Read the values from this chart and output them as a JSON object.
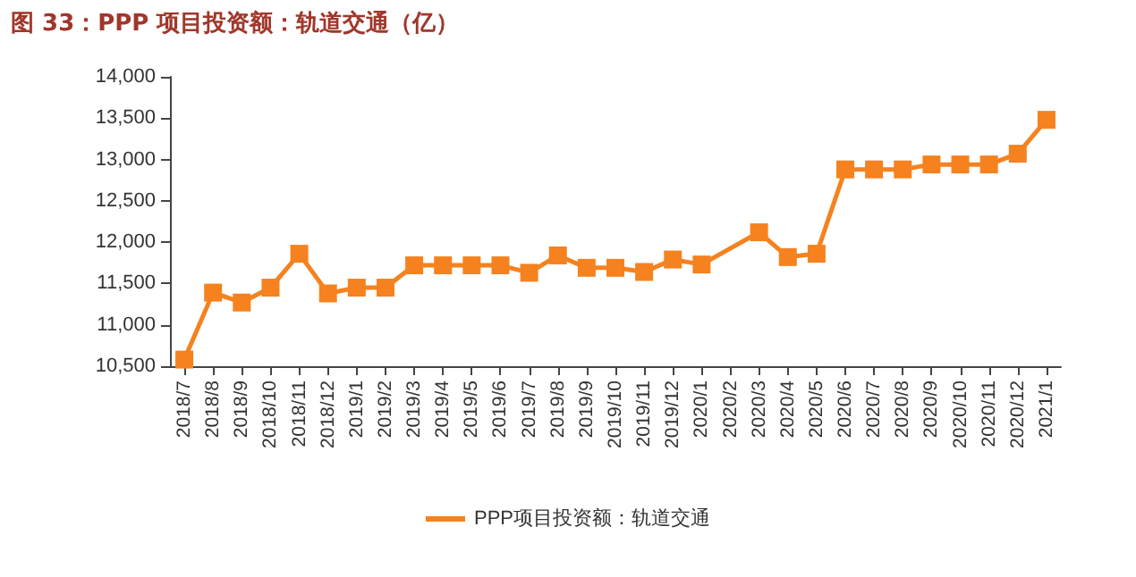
{
  "chart_data": {
    "type": "line",
    "title": "图 33：PPP 项目投资额：轨道交通（亿）",
    "categories": [
      "2018/7",
      "2018/8",
      "2018/9",
      "2018/10",
      "2018/11",
      "2018/12",
      "2019/1",
      "2019/2",
      "2019/3",
      "2019/4",
      "2019/5",
      "2019/6",
      "2019/7",
      "2019/8",
      "2019/9",
      "2019/10",
      "2019/11",
      "2019/12",
      "2020/1",
      "2020/2",
      "2020/3",
      "2020/4",
      "2020/5",
      "2020/6",
      "2020/7",
      "2020/8",
      "2020/9",
      "2020/10",
      "2020/11",
      "2020/12",
      "2021/1"
    ],
    "series": [
      {
        "name": "PPP项目投资额：轨道交通",
        "color": "#f5821f",
        "values": [
          10580,
          11390,
          11270,
          11450,
          11860,
          11380,
          11450,
          11450,
          11720,
          11720,
          11720,
          11720,
          11630,
          11840,
          11690,
          11690,
          11640,
          11790,
          11730,
          null,
          12120,
          11820,
          11860,
          12880,
          12880,
          12880,
          12940,
          12940,
          12940,
          13070,
          13480
        ]
      }
    ],
    "ylim": [
      10500,
      14000
    ],
    "yticks": [
      {
        "value": 10500,
        "label": "10,500"
      },
      {
        "value": 11000,
        "label": "11,000"
      },
      {
        "value": 11500,
        "label": "11,500"
      },
      {
        "value": 12000,
        "label": "12,000"
      },
      {
        "value": 12500,
        "label": "12,500"
      },
      {
        "value": 13000,
        "label": "13,000"
      },
      {
        "value": 13500,
        "label": "13,500"
      },
      {
        "value": 14000,
        "label": "14,000"
      }
    ],
    "grid": false,
    "legend": "bottom",
    "marker": "square",
    "line_style": "solid"
  }
}
